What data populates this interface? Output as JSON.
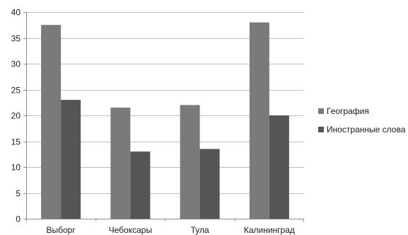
{
  "chart_data": {
    "type": "bar",
    "categories": [
      "Выборг",
      "Чебоксары",
      "Тула",
      "Калининград"
    ],
    "series": [
      {
        "name": "География",
        "values": [
          37.5,
          21.5,
          22,
          38
        ],
        "color": "#7a7a7a"
      },
      {
        "name": "Иностранные слова",
        "values": [
          23,
          13,
          13.5,
          20
        ],
        "color": "#555555"
      }
    ],
    "ylim": [
      0,
      40
    ],
    "yticks": [
      0,
      5,
      10,
      15,
      20,
      25,
      30,
      35,
      40
    ],
    "grid": true,
    "legend": "right"
  }
}
